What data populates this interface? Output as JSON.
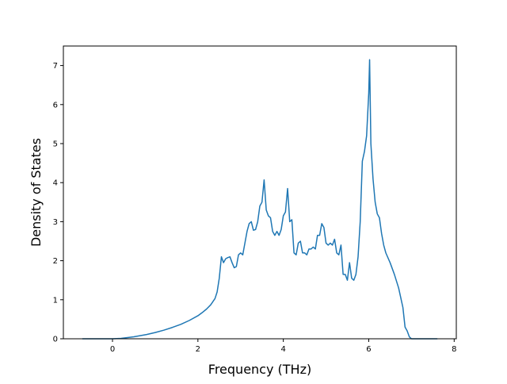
{
  "chart_data": {
    "type": "line",
    "title": "",
    "xlabel": "Frequency (THz)",
    "ylabel": "Density of States",
    "xlim": [
      -1.15,
      8.05
    ],
    "ylim": [
      0,
      7.5
    ],
    "xticks": [
      0,
      2,
      4,
      6,
      8
    ],
    "yticks": [
      0,
      1,
      2,
      3,
      4,
      5,
      6,
      7
    ],
    "grid": false,
    "legend": "none",
    "line_color": "#1f77b4",
    "series": [
      {
        "x": [
          -0.7,
          0.0,
          0.2,
          0.5,
          0.8,
          1.0,
          1.2,
          1.4,
          1.6,
          1.8,
          2.0,
          2.1,
          2.2,
          2.3,
          2.4,
          2.45,
          2.5,
          2.55,
          2.6,
          2.65,
          2.7,
          2.75,
          2.8,
          2.85,
          2.9,
          2.95,
          3.0,
          3.05,
          3.1,
          3.15,
          3.2,
          3.25,
          3.3,
          3.35,
          3.4,
          3.45,
          3.5,
          3.55,
          3.6,
          3.65,
          3.7,
          3.75,
          3.8,
          3.85,
          3.9,
          3.95,
          4.0,
          4.05,
          4.1,
          4.15,
          4.2,
          4.25,
          4.3,
          4.35,
          4.4,
          4.45,
          4.5,
          4.55,
          4.6,
          4.65,
          4.7,
          4.75,
          4.8,
          4.85,
          4.9,
          4.95,
          5.0,
          5.05,
          5.1,
          5.15,
          5.2,
          5.25,
          5.3,
          5.35,
          5.4,
          5.45,
          5.5,
          5.55,
          5.6,
          5.65,
          5.7,
          5.75,
          5.8,
          5.85,
          5.9,
          5.95,
          6.0,
          6.02,
          6.05,
          6.1,
          6.15,
          6.2,
          6.25,
          6.3,
          6.35,
          6.4,
          6.5,
          6.6,
          6.7,
          6.75,
          6.8,
          6.85,
          6.9,
          6.95,
          7.0,
          7.6
        ],
        "y": [
          0.0,
          0.0,
          0.01,
          0.05,
          0.11,
          0.16,
          0.22,
          0.29,
          0.37,
          0.47,
          0.59,
          0.67,
          0.76,
          0.87,
          1.03,
          1.2,
          1.55,
          2.1,
          1.95,
          2.05,
          2.08,
          2.1,
          1.95,
          1.82,
          1.85,
          2.15,
          2.2,
          2.15,
          2.45,
          2.75,
          2.95,
          3.0,
          2.78,
          2.8,
          3.0,
          3.4,
          3.5,
          4.07,
          3.3,
          3.15,
          3.1,
          2.75,
          2.65,
          2.75,
          2.65,
          2.8,
          3.15,
          3.25,
          3.85,
          3.0,
          3.05,
          2.2,
          2.15,
          2.45,
          2.5,
          2.2,
          2.2,
          2.15,
          2.3,
          2.3,
          2.35,
          2.3,
          2.65,
          2.65,
          2.95,
          2.85,
          2.45,
          2.4,
          2.45,
          2.4,
          2.55,
          2.2,
          2.15,
          2.4,
          1.65,
          1.65,
          1.5,
          1.95,
          1.55,
          1.5,
          1.65,
          2.1,
          3.0,
          4.55,
          4.8,
          5.2,
          6.3,
          7.15,
          5.0,
          4.1,
          3.5,
          3.2,
          3.1,
          2.7,
          2.4,
          2.2,
          1.95,
          1.65,
          1.3,
          1.05,
          0.8,
          0.3,
          0.2,
          0.05,
          0.0,
          0.0
        ]
      }
    ]
  }
}
